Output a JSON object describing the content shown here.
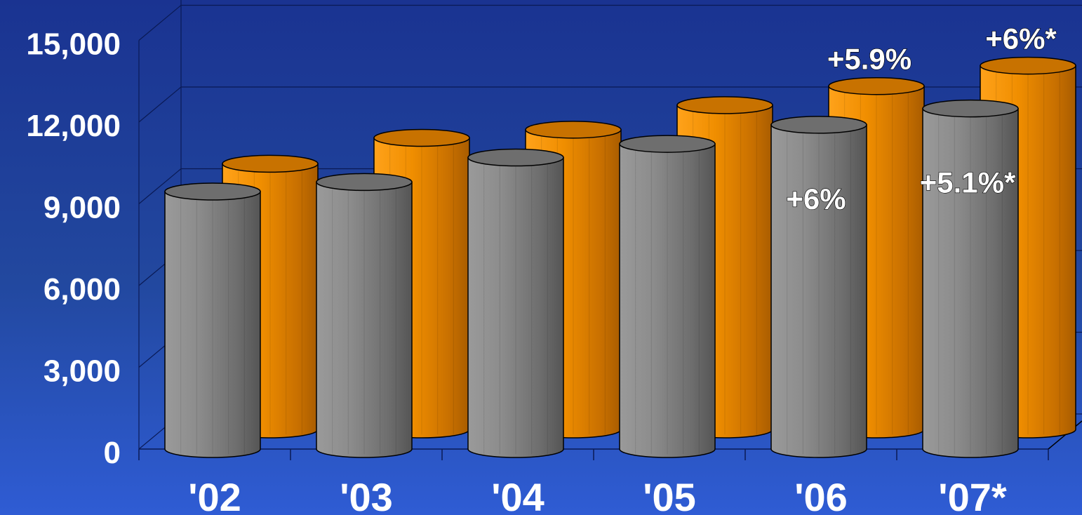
{
  "chart_data": {
    "type": "bar",
    "categories": [
      "'02",
      "'03",
      "'04",
      "'05",
      "'06",
      "'07*"
    ],
    "series": [
      {
        "values": [
          9450,
          9800,
          10700,
          11200,
          11900,
          12500
        ],
        "color": "#8a8a8a"
      },
      {
        "values": [
          9750,
          10700,
          11000,
          11900,
          12600,
          13350
        ],
        "color": "#f09a10"
      }
    ],
    "ylim": [
      0,
      15000
    ],
    "yticks": [
      "0",
      "3,000",
      "6,000",
      "9,000",
      "12,000",
      "15,000"
    ],
    "annotations": [
      {
        "category": "'06",
        "series": 0,
        "text": "+6%"
      },
      {
        "category": "'06",
        "series": 1,
        "text": "+5.9%"
      },
      {
        "category": "'07*",
        "series": 0,
        "text": "+5.1%*"
      },
      {
        "category": "'07*",
        "series": 1,
        "text": "+6%*"
      }
    ],
    "grid": true,
    "three_d": true,
    "legend": "none"
  }
}
